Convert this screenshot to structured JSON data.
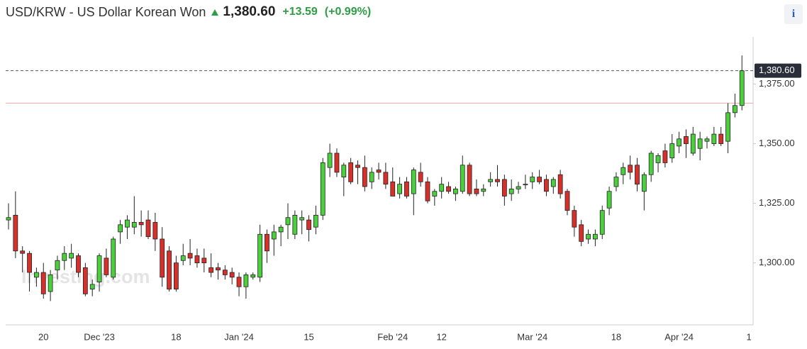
{
  "chart_data": {
    "type": "candlestick",
    "title": "USD/KRW - US Dollar Korean Won",
    "last_price": {
      "value": 1380.6,
      "label": "1,380.60"
    },
    "change": {
      "value": 13.59,
      "label": "+13.59"
    },
    "change_percent": {
      "value": 0.99,
      "label": "(+0.99%)"
    },
    "prev_close": 1367.01,
    "watermark": "Investing.com",
    "info_button": "i",
    "up_color": "#4ccf3c",
    "down_color": "#d7302b",
    "prev_close_color": "#f4a9a6",
    "ylim": [
      1274,
      1393
    ],
    "yticks": [
      {
        "value": 1300,
        "label": "1,300.00"
      },
      {
        "value": 1325,
        "label": "1,325.00"
      },
      {
        "value": 1350,
        "label": "1,350.00"
      },
      {
        "value": 1375,
        "label": "1,375.00"
      }
    ],
    "categories": [
      null,
      null,
      null,
      null,
      null,
      "20",
      null,
      null,
      null,
      null,
      null,
      null,
      null,
      "Dec '23",
      null,
      null,
      null,
      null,
      null,
      null,
      null,
      null,
      null,
      null,
      "18",
      null,
      null,
      null,
      null,
      null,
      null,
      null,
      null,
      "Jan '24",
      null,
      null,
      null,
      null,
      null,
      null,
      null,
      null,
      null,
      "15",
      null,
      null,
      null,
      null,
      null,
      null,
      null,
      null,
      null,
      null,
      null,
      "Feb '24",
      null,
      null,
      null,
      null,
      null,
      null,
      "12",
      null,
      null,
      null,
      null,
      null,
      null,
      null,
      null,
      null,
      null,
      null,
      null,
      "Mar '24",
      null,
      null,
      null,
      null,
      null,
      null,
      null,
      null,
      null,
      null,
      null,
      "18",
      null,
      null,
      null,
      null,
      null,
      null,
      null,
      null,
      "Apr '24",
      null,
      null,
      null,
      null,
      null,
      null,
      null,
      null,
      null,
      "1"
    ],
    "open": [
      1318,
      1320,
      1305,
      1304,
      1294,
      1296,
      1288,
      1297,
      1301,
      1302,
      1303,
      1298,
      1289,
      1292,
      1302,
      1294,
      1313,
      1315,
      1315,
      1317,
      1318,
      1317,
      1310,
      1305,
      1300,
      1301,
      1304,
      1303,
      1302,
      1298,
      1298,
      1297,
      1296,
      1294,
      1290,
      1294,
      1294,
      1312,
      1310,
      1313,
      1316,
      1312,
      1318,
      1318,
      1315,
      1320,
      1340,
      1346,
      1336,
      1342,
      1341,
      1340,
      1334,
      1339,
      1338,
      1334,
      1329,
      1334,
      1329,
      1338,
      1334,
      1328,
      1330,
      1332,
      1329,
      1330,
      1341,
      1331,
      1330,
      1334,
      1335,
      1335,
      1329,
      1331,
      1333,
      1334,
      1336,
      1335,
      1332,
      1337,
      1330,
      1322,
      1316,
      1310,
      1310,
      1312,
      1323,
      1332,
      1337,
      1341,
      1341,
      1330,
      1337,
      1342,
      1347,
      1344,
      1349,
      1353,
      1346,
      1348,
      1351,
      1350,
      1354,
      1351,
      1363,
      1366,
      null
    ],
    "high": [
      1325,
      1330,
      1307,
      1305,
      1298,
      1300,
      1297,
      1303,
      1307,
      1308,
      1304,
      1300,
      1293,
      1304,
      1306,
      1311,
      1318,
      1320,
      1328,
      1322,
      1322,
      1321,
      1315,
      1307,
      1303,
      1308,
      1310,
      1306,
      1306,
      1304,
      1300,
      1299,
      1298,
      1296,
      1296,
      1296,
      1316,
      1314,
      1316,
      1316,
      1325,
      1322,
      1322,
      1320,
      1324,
      1344,
      1350,
      1348,
      1342,
      1344,
      1343,
      1345,
      1340,
      1342,
      1342,
      1340,
      1336,
      1336,
      1340,
      1342,
      1336,
      1331,
      1336,
      1334,
      1332,
      1345,
      1342,
      1335,
      1333,
      1338,
      1341,
      1337,
      1335,
      1334,
      1337,
      1338,
      1339,
      1337,
      1336,
      1339,
      1331,
      1324,
      1318,
      1314,
      1314,
      1324,
      1332,
      1338,
      1342,
      1345,
      1344,
      1338,
      1347,
      1346,
      1350,
      1354,
      1355,
      1356,
      1357,
      1355,
      1353,
      1357,
      1357,
      1367,
      1371,
      1387,
      null
    ],
    "low": [
      1314,
      1302,
      1296,
      1288,
      1290,
      1285,
      1284,
      1293,
      1297,
      1298,
      1294,
      1286,
      1286,
      1288,
      1294,
      1293,
      1308,
      1310,
      1312,
      1311,
      1310,
      1305,
      1290,
      1288,
      1288,
      1299,
      1299,
      1298,
      1296,
      1294,
      1293,
      1293,
      1291,
      1286,
      1285,
      1293,
      1292,
      1300,
      1303,
      1307,
      1310,
      1310,
      1312,
      1309,
      1312,
      1318,
      1336,
      1336,
      1328,
      1333,
      1333,
      1330,
      1331,
      1335,
      1331,
      1328,
      1327,
      1327,
      1320,
      1332,
      1325,
      1324,
      1327,
      1329,
      1326,
      1329,
      1328,
      1328,
      1328,
      1332,
      1332,
      1324,
      1326,
      1329,
      1331,
      1331,
      1333,
      1328,
      1329,
      1327,
      1320,
      1311,
      1307,
      1308,
      1307,
      1310,
      1320,
      1330,
      1333,
      1335,
      1330,
      1322,
      1334,
      1338,
      1340,
      1342,
      1346,
      1344,
      1345,
      1343,
      1348,
      1349,
      1349,
      1346,
      1361,
      1364,
      null
    ],
    "close": [
      1319,
      1305,
      1304,
      1296,
      1296,
      1287,
      1295,
      1301,
      1304,
      1304,
      1296,
      1287,
      1291,
      1303,
      1295,
      1310,
      1316,
      1318,
      1317,
      1316,
      1311,
      1310,
      1294,
      1289,
      1289,
      1303,
      1302,
      1300,
      1300,
      1296,
      1297,
      1295,
      1294,
      1290,
      1295,
      1295,
      1312,
      1305,
      1313,
      1315,
      1319,
      1320,
      1319,
      1314,
      1320,
      1342,
      1346,
      1338,
      1341,
      1334,
      1340,
      1332,
      1338,
      1338,
      1333,
      1328,
      1333,
      1328,
      1339,
      1334,
      1326,
      1330,
      1333,
      1330,
      1331,
      1341,
      1329,
      1329,
      1331,
      1335,
      1334,
      1328,
      1331,
      1332,
      1333,
      1336,
      1334,
      1330,
      1335,
      1329,
      1322,
      1315,
      1309,
      1312,
      1312,
      1322,
      1330,
      1336,
      1340,
      1338,
      1333,
      1337,
      1346,
      1345,
      1342,
      1350,
      1352,
      1350,
      1354,
      1352,
      1352,
      1354,
      1350,
      1363,
      1366,
      1380.6,
      null
    ]
  }
}
